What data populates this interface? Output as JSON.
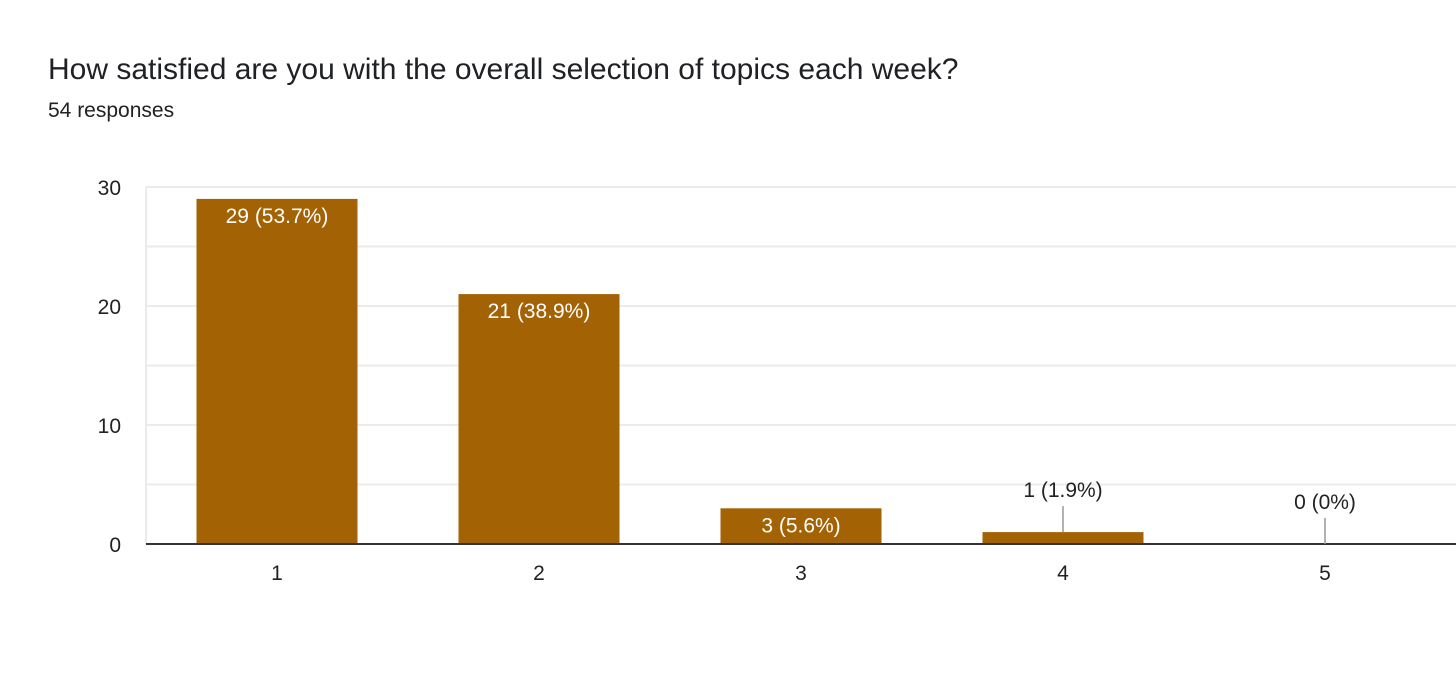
{
  "question": {
    "title": "How satisfied are you with the overall selection of topics each week?",
    "responses": "54 responses"
  },
  "colors": {
    "bar": "#a36203",
    "grid": "#ebebeb",
    "axis": "#333333",
    "leader": "#999999"
  },
  "chart_data": {
    "type": "bar",
    "categories": [
      "1",
      "2",
      "3",
      "4",
      "5"
    ],
    "values": [
      29,
      21,
      3,
      1,
      0
    ],
    "data_labels": [
      "29 (53.7%)",
      "21 (38.9%)",
      "3 (5.6%)",
      "1 (1.9%)",
      "0 (0%)"
    ],
    "ylim": [
      0,
      30
    ],
    "y_ticks": [
      "0",
      "10",
      "20",
      "30"
    ],
    "y_tick_values": [
      0,
      10,
      20,
      30
    ],
    "minor_gridlines": [
      5,
      15,
      25
    ],
    "grid": true,
    "legend": "none",
    "title": "",
    "xlabel": "",
    "ylabel": ""
  }
}
